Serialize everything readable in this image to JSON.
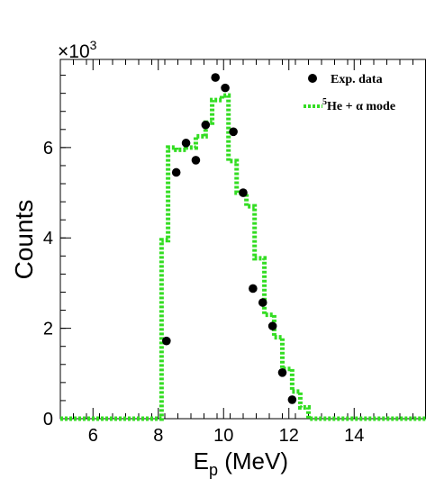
{
  "chart_data": {
    "type": "scatter",
    "xlabel_main": "E",
    "xlabel_sub": "p",
    "xlabel_unit": " (MeV)",
    "ylabel": "Counts",
    "multiplier_base": "×10",
    "multiplier_exp": "3",
    "xlim": [
      5,
      16.2
    ],
    "ylim": [
      0,
      7.95
    ],
    "x_ticks": [
      6,
      8,
      10,
      12,
      14
    ],
    "y_ticks": [
      0,
      2,
      4,
      6
    ],
    "legend_position": "top-right",
    "legend": {
      "data_label": "Exp. data",
      "model_sup": "5",
      "model_label": "He + α mode"
    },
    "colors": {
      "data": "#000000",
      "model": "#33dd22"
    },
    "series": [
      {
        "name": "Exp. data",
        "kind": "points",
        "x": [
          8.25,
          8.55,
          8.85,
          9.15,
          9.45,
          9.75,
          10.05,
          10.3,
          10.6,
          10.9,
          11.2,
          11.5,
          11.8,
          12.1
        ],
        "y": [
          1.72,
          5.45,
          6.1,
          5.72,
          6.5,
          7.55,
          7.32,
          6.35,
          5.0,
          2.88,
          2.57,
          2.05,
          1.02,
          0.42
        ]
      },
      {
        "name": "5He + α mode",
        "kind": "step",
        "edges": [
          5.0,
          8.1,
          8.3,
          8.55,
          8.85,
          9.15,
          9.45,
          9.65,
          9.95,
          10.15,
          10.4,
          10.7,
          10.95,
          11.25,
          11.55,
          11.8,
          12.1,
          12.35,
          12.6,
          16.2
        ],
        "values": [
          0,
          3.95,
          6.0,
          5.95,
          6.0,
          6.25,
          6.55,
          7.05,
          7.15,
          5.7,
          5.0,
          4.7,
          3.55,
          2.3,
          1.8,
          1.1,
          0.6,
          0.25,
          0
        ]
      }
    ]
  }
}
